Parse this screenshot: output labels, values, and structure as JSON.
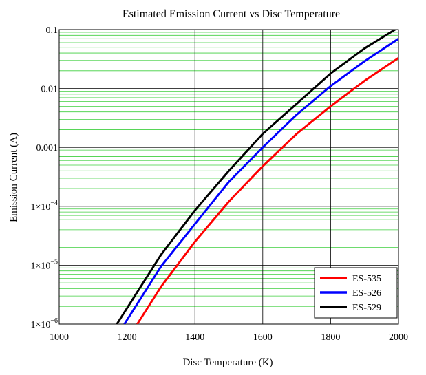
{
  "chart_data": {
    "type": "line",
    "title": "Estimated Emission Current vs Disc Temperature",
    "xlabel": "Disc Temperature (K)",
    "ylabel": "Emission Current (A)",
    "xlim": [
      1000,
      2000
    ],
    "ylim": [
      1e-06,
      0.1
    ],
    "yscale": "log",
    "grid": true,
    "legend_position": "bottom-right",
    "x_ticks": [
      "1000",
      "1200",
      "1400",
      "1600",
      "1800",
      "2000"
    ],
    "x_tick_values": [
      1000,
      1200,
      1400,
      1600,
      1800,
      2000
    ],
    "y_ticks": [
      {
        "value": 1e-06,
        "mantissa": "1×10",
        "exp": "−6",
        "label": ""
      },
      {
        "value": 1e-05,
        "mantissa": "1×10",
        "exp": "−5",
        "label": ""
      },
      {
        "value": 0.0001,
        "mantissa": "1×10",
        "exp": "−4",
        "label": ""
      },
      {
        "value": 0.001,
        "mantissa": "",
        "exp": "",
        "label": "0.001"
      },
      {
        "value": 0.01,
        "mantissa": "",
        "exp": "",
        "label": "0.01"
      },
      {
        "value": 0.1,
        "mantissa": "",
        "exp": "",
        "label": "0.1"
      }
    ],
    "series": [
      {
        "name": "ES-535",
        "color": "#ff0000",
        "x": [
          1230,
          1300,
          1400,
          1500,
          1600,
          1700,
          1800,
          1900,
          2000
        ],
        "y": [
          1e-06,
          4.3e-06,
          2.5e-05,
          0.00012,
          0.00048,
          0.0017,
          0.005,
          0.0135,
          0.033
        ]
      },
      {
        "name": "ES-526",
        "color": "#0000ff",
        "x": [
          1192,
          1300,
          1400,
          1500,
          1600,
          1700,
          1800,
          1900,
          2000
        ],
        "y": [
          1e-06,
          9.5e-06,
          5e-05,
          0.00026,
          0.001,
          0.0036,
          0.011,
          0.029,
          0.07
        ]
      },
      {
        "name": "ES-529",
        "color": "#000000",
        "x": [
          1170,
          1300,
          1400,
          1500,
          1600,
          1700,
          1800,
          1900,
          1990
        ],
        "y": [
          1e-06,
          1.5e-05,
          8.5e-05,
          0.0004,
          0.0017,
          0.0055,
          0.018,
          0.048,
          0.1
        ]
      }
    ]
  }
}
